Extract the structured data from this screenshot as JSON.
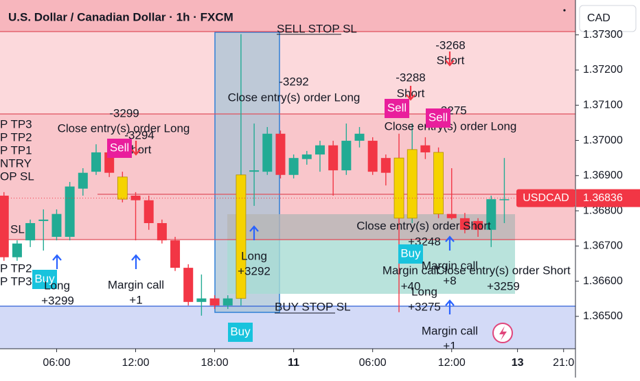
{
  "chart_data": {
    "type": "candlestick",
    "title": "U.S. Dollar / Canadian Dollar · 1h · FXCM",
    "currency": "CAD",
    "symbol": "USDCAD",
    "last_price": 1.36836,
    "up_color": "#22ab94",
    "down_color": "#f23645",
    "highlight": {
      "color": "#f5d300",
      "indices": [
        9,
        18,
        30,
        31,
        33
      ]
    },
    "x": [
      2,
      3,
      4,
      5,
      6,
      7,
      8,
      9,
      10,
      11,
      12,
      13,
      14,
      15,
      16,
      17,
      18,
      19,
      20,
      21,
      22,
      23,
      24,
      25,
      26,
      27,
      28,
      29,
      30,
      31,
      32,
      33,
      34,
      35,
      36,
      37,
      38,
      39,
      40
    ],
    "open": [
      1.36843,
      1.36668,
      1.36716,
      1.36771,
      1.36726,
      1.36726,
      1.36863,
      1.36911,
      1.36966,
      1.36896,
      1.36843,
      1.3683,
      1.36765,
      1.36716,
      1.36638,
      1.36541,
      1.36551,
      1.36531,
      1.36551,
      1.36911,
      1.36911,
      1.37019,
      1.36902,
      1.36947,
      1.3696,
      1.36986,
      1.36915,
      1.36999,
      1.36999,
      1.3695,
      1.3695,
      1.36779,
      1.36986,
      1.36966,
      1.36791,
      1.36779,
      1.36771,
      1.36746,
      1.36833
    ],
    "high": [
      1.36853,
      1.36716,
      1.36775,
      1.36804,
      1.36804,
      1.36882,
      1.36921,
      1.36989,
      1.3698,
      1.36911,
      1.36853,
      1.36843,
      1.36775,
      1.36726,
      1.36648,
      1.36619,
      1.3656,
      1.3656,
      1.37302,
      1.37048,
      1.37038,
      1.37028,
      1.3696,
      1.3697,
      1.36999,
      1.36999,
      1.37048,
      1.37038,
      1.37009,
      1.3696,
      1.37019,
      1.37048,
      1.37009,
      1.3698,
      1.36921,
      1.36794,
      1.36779,
      1.36843,
      1.3695
    ],
    "low": [
      1.36658,
      1.36658,
      1.36697,
      1.36687,
      1.36716,
      1.36716,
      1.36843,
      1.36902,
      1.36896,
      1.36824,
      1.36716,
      1.36746,
      1.36707,
      1.36629,
      1.36531,
      1.36502,
      1.36521,
      1.36521,
      1.36531,
      1.36814,
      1.36902,
      1.36892,
      1.36892,
      1.36931,
      1.36911,
      1.36843,
      1.36902,
      1.3698,
      1.36902,
      1.36872,
      1.36512,
      1.36765,
      1.36947,
      1.36779,
      1.36775,
      1.36736,
      1.36726,
      1.36697,
      1.36765
    ],
    "close": [
      1.36668,
      1.36707,
      1.36765,
      1.36775,
      1.36791,
      1.36869,
      1.36908,
      1.36966,
      1.36908,
      1.36833,
      1.3683,
      1.36765,
      1.36716,
      1.36638,
      1.36541,
      1.36551,
      1.36531,
      1.36551,
      1.36902,
      1.36915,
      1.37019,
      1.36902,
      1.3695,
      1.3696,
      1.36986,
      1.36915,
      1.36999,
      1.37019,
      1.36911,
      1.36908,
      1.36779,
      1.36974,
      1.36966,
      1.36791,
      1.36779,
      1.36746,
      1.36746,
      1.36833,
      1.36833
    ],
    "xlim": [
      1.7,
      45.4
    ],
    "xticks": [
      {
        "value": 6,
        "label": "06:00"
      },
      {
        "value": 12,
        "label": "12:00"
      },
      {
        "value": 18,
        "label": "18:00"
      },
      {
        "value": 24,
        "label": "11"
      },
      {
        "value": 30,
        "label": "06:00"
      },
      {
        "value": 36,
        "label": "12:00"
      },
      {
        "value": 41,
        "label": "13"
      },
      {
        "value": 44.5,
        "label": "21:0"
      }
    ],
    "ylim": [
      1.36408,
      1.37399
    ],
    "yticks": [
      {
        "value": 1.365,
        "label": "1.36500"
      },
      {
        "value": 1.366,
        "label": "1.36600"
      },
      {
        "value": 1.367,
        "label": "1.36700"
      },
      {
        "value": 1.368,
        "label": "1.36800"
      },
      {
        "value": 1.369,
        "label": "1.36900"
      },
      {
        "value": 1.37,
        "label": "1.37000"
      },
      {
        "value": 1.371,
        "label": "1.37100"
      },
      {
        "value": 1.372,
        "label": "1.37200"
      },
      {
        "value": 1.373,
        "label": "1.37300"
      }
    ],
    "annotations": [
      "SELL STOP SL",
      "BUY STOP SL",
      "-3268",
      "Short",
      "-3288",
      "Short",
      "-3292",
      "Close entry(s) order Long",
      "-3299",
      "Close entry(s) order Long",
      "-3294",
      "Short",
      "-3275",
      "Close entry(s) order Long",
      "Sell",
      "Sell",
      "Sell",
      "P TP3",
      "P TP2",
      "P TP1",
      "NTRY",
      "OP SL",
      "SL",
      "P TP2",
      "P TP3",
      "Buy",
      "Long",
      "+3299",
      "Margin call",
      "+1",
      "Long",
      "+3292",
      "Buy",
      "Close entry(s) order Short",
      "+3248",
      "Buy",
      "Margin call",
      "Margin call",
      "+40",
      "Close entry(s) order Short",
      "+3259",
      "+8",
      "Long",
      "+3275",
      "Margin call",
      "+1"
    ]
  }
}
